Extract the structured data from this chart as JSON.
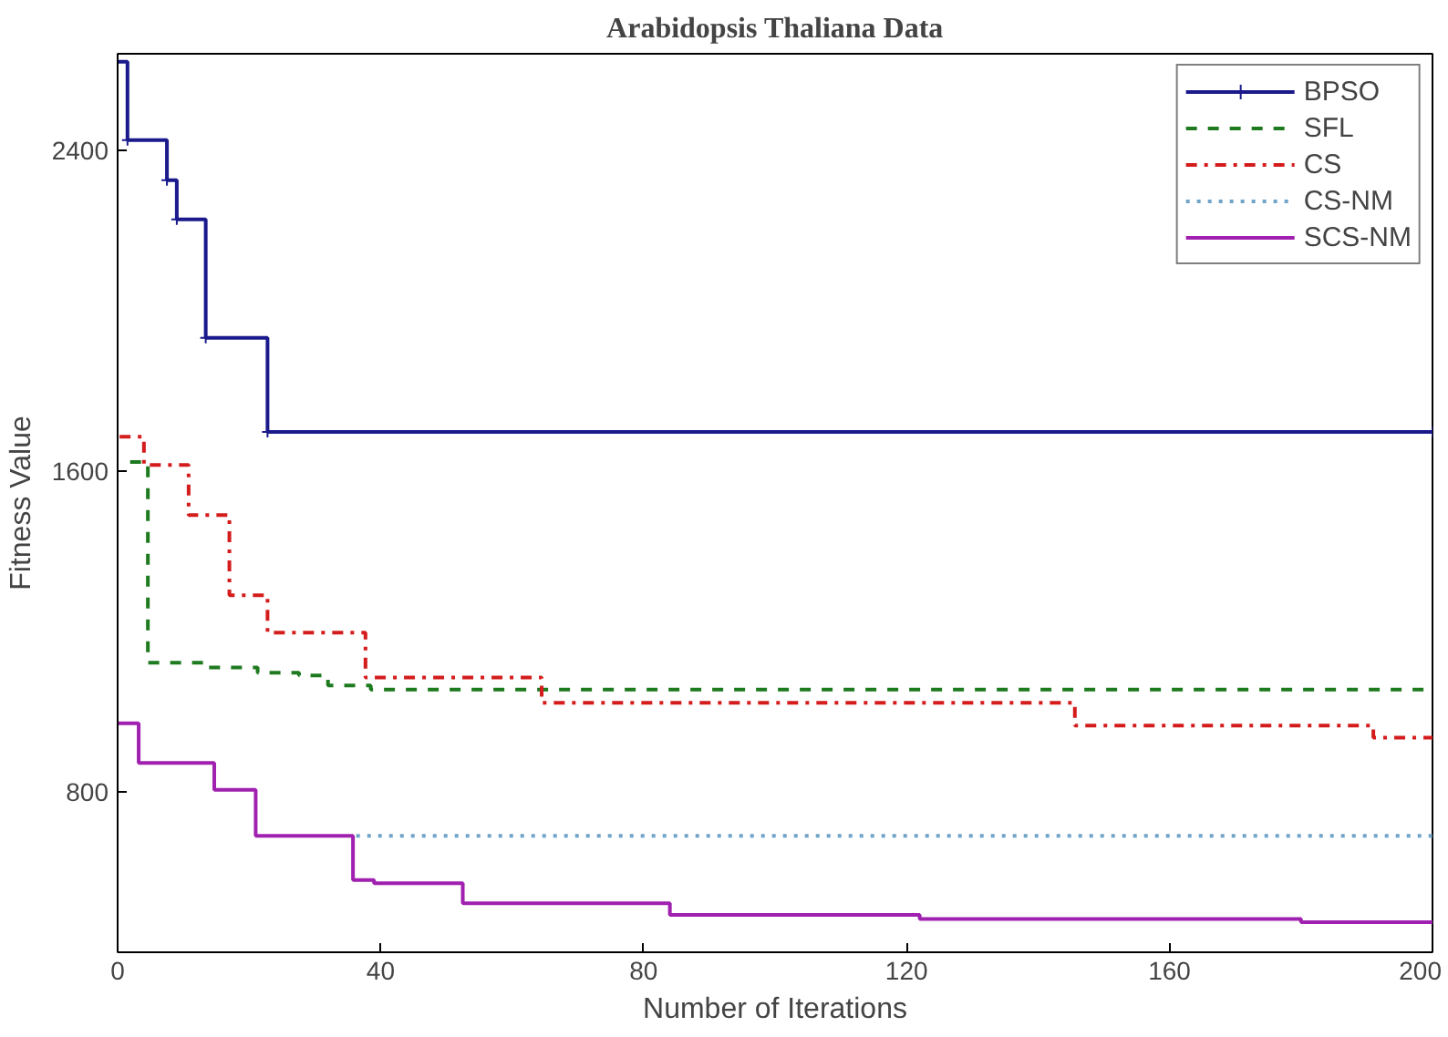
{
  "chart_data": {
    "type": "step",
    "title": "Arabidopsis Thaliana Data",
    "xlabel": "Number of Iterations",
    "ylabel": "Fitness Value",
    "xlim": [
      0,
      200
    ],
    "ylim": [
      400,
      2640
    ],
    "xticks": [
      0,
      40,
      80,
      120,
      160,
      200
    ],
    "yticks": [
      800,
      1600,
      2400
    ],
    "grid": false,
    "legend": "top right",
    "series": [
      {
        "name": "BPSO",
        "color": "#1a1a8c",
        "line_style": "solid",
        "marker": "cross",
        "x": [
          0,
          1.5,
          7.5,
          9,
          13.4,
          22.8,
          200
        ],
        "values": [
          2620,
          2425,
          2325,
          2227,
          1932,
          1697,
          1697
        ]
      },
      {
        "name": "SFL",
        "color": "#1e7a1e",
        "line_style": "dashed",
        "marker": "none",
        "x": [
          1.9,
          4.6,
          13.2,
          21.3,
          27.6,
          32,
          38.5,
          200
        ],
        "values": [
          1622,
          1122,
          1110,
          1097,
          1090,
          1065,
          1055,
          1055
        ]
      },
      {
        "name": "CS",
        "color": "#d41c1c",
        "line_style": "dashdot",
        "marker": "none",
        "x": [
          0.3,
          4,
          10.8,
          17,
          22.8,
          37.7,
          64.5,
          145.6,
          191,
          200
        ],
        "values": [
          1685,
          1615,
          1490,
          1290,
          1197,
          1085,
          1022,
          965,
          935,
          935
        ]
      },
      {
        "name": "CS-NM",
        "color": "#6fa3c8",
        "line_style": "dotted",
        "marker": "none",
        "x": [
          36.3,
          200
        ],
        "values": [
          690,
          690
        ]
      },
      {
        "name": "SCS-NM",
        "color": "#a020b0",
        "line_style": "solid",
        "marker": "none",
        "x": [
          0,
          3.2,
          14.7,
          21,
          35.8,
          39,
          52.5,
          84,
          122,
          180,
          200
        ],
        "values": [
          971,
          872,
          805,
          690,
          580,
          572,
          522,
          493,
          483,
          475,
          475
        ]
      }
    ]
  }
}
